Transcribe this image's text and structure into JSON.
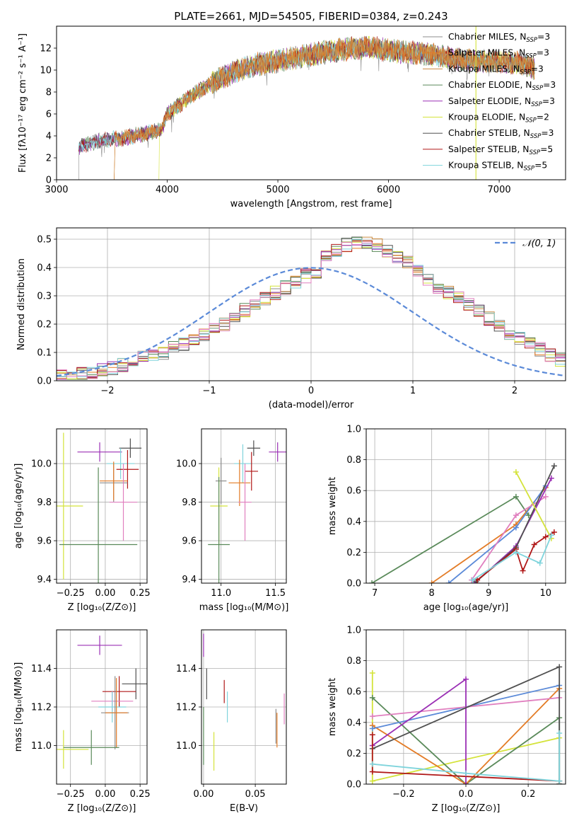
{
  "title": "PLATE=2661, MJD=54505, FIBERID=0384, z=0.243",
  "colors": {
    "chabrier_miles": "#8c8c8c",
    "salpeter_miles": "#e37c27",
    "kroupa_miles": "#c98a40",
    "chabrier_elodie": "#5a8a5a",
    "salpeter_elodie": "#9b30b5",
    "kroupa_elodie": "#d4e33a",
    "chabrier_stelib": "#505050",
    "salpeter_stelib": "#b01818",
    "kroupa_stelib": "#7fd4dc",
    "normal": "#5b8ad8",
    "pink": "#e07fbf",
    "blue": "#5b8ad8"
  },
  "chart_data": [
    {
      "type": "line",
      "xlabel": "wavelength [Angstrom, rest frame]",
      "ylabel": "Flux [fλ10⁻¹⁷ erg cm⁻² s⁻¹ A⁻¹]",
      "xlim": [
        3000,
        7600
      ],
      "ylim": [
        0,
        14
      ],
      "xticks": [
        "3000",
        "4000",
        "5000",
        "6000",
        "7000"
      ],
      "yticks": [
        "0",
        "2",
        "4",
        "6",
        "8",
        "10",
        "12"
      ],
      "legend": [
        {
          "label": "Chabrier MILES, N",
          "sub": "SSP",
          "val": "=3",
          "color": "#8c8c8c"
        },
        {
          "label": "Salpeter MILES, N",
          "sub": "SSP",
          "val": "=3",
          "color": "#e37c27"
        },
        {
          "label": "Kroupa MILES, N",
          "sub": "SSP",
          "val": "=3",
          "color": "#c98a40"
        },
        {
          "label": "Chabrier ELODIE, N",
          "sub": "SSP",
          "val": "=3",
          "color": "#5a8a5a"
        },
        {
          "label": "Salpeter ELODIE, N",
          "sub": "SSP",
          "val": "=3",
          "color": "#9b30b5"
        },
        {
          "label": "Kroupa ELODIE, N",
          "sub": "SSP",
          "val": "=2",
          "color": "#d4e33a"
        },
        {
          "label": "Chabrier STELIB, N",
          "sub": "SSP",
          "val": "=3",
          "color": "#505050"
        },
        {
          "label": "Salpeter STELIB, N",
          "sub": "SSP",
          "val": "=5",
          "color": "#b01818"
        },
        {
          "label": "Kroupa STELIB, N",
          "sub": "SSP",
          "val": "=5",
          "color": "#7fd4dc"
        }
      ],
      "continuum": [
        [
          3200,
          3.0
        ],
        [
          3400,
          3.6
        ],
        [
          3600,
          3.8
        ],
        [
          3800,
          4.2
        ],
        [
          3950,
          4.6
        ],
        [
          4000,
          6.0
        ],
        [
          4200,
          7.5
        ],
        [
          4400,
          8.8
        ],
        [
          4600,
          9.8
        ],
        [
          4800,
          10.5
        ],
        [
          5000,
          10.8
        ],
        [
          5200,
          11.2
        ],
        [
          5400,
          11.6
        ],
        [
          5600,
          11.9
        ],
        [
          5800,
          12.1
        ],
        [
          6000,
          11.8
        ],
        [
          6200,
          11.6
        ],
        [
          6400,
          11.4
        ],
        [
          6600,
          11.0
        ],
        [
          6800,
          10.8
        ],
        [
          7000,
          10.8
        ],
        [
          7200,
          10.6
        ],
        [
          7320,
          10.2
        ]
      ]
    },
    {
      "type": "bar",
      "xlabel": "(data-model)/error",
      "ylabel": "Normed distribution",
      "xlim": [
        -2.5,
        2.5
      ],
      "ylim": [
        0,
        0.54
      ],
      "xticks": [
        "−2",
        "−1",
        "0",
        "1",
        "2"
      ],
      "yticks": [
        "0.0",
        "0.1",
        "0.2",
        "0.3",
        "0.4",
        "0.5"
      ],
      "legend": [
        "𝒩(0, 1)"
      ],
      "bin_width": 0.1,
      "bin_start": -2.5,
      "values": [
        0.02,
        0.02,
        0.025,
        0.03,
        0.04,
        0.045,
        0.055,
        0.065,
        0.08,
        0.09,
        0.1,
        0.115,
        0.13,
        0.145,
        0.16,
        0.18,
        0.2,
        0.225,
        0.25,
        0.27,
        0.29,
        0.31,
        0.33,
        0.35,
        0.37,
        0.385,
        0.44,
        0.46,
        0.48,
        0.49,
        0.49,
        0.48,
        0.46,
        0.44,
        0.42,
        0.39,
        0.36,
        0.33,
        0.31,
        0.29,
        0.27,
        0.25,
        0.22,
        0.2,
        0.17,
        0.15,
        0.13,
        0.11,
        0.09,
        0.075,
        0.06,
        0.05,
        0.045,
        0.04,
        0.035,
        0.03,
        0.03,
        0.025,
        0.025,
        0.02
      ]
    },
    {
      "type": "scatter",
      "xlabel": "Z [log₁₀(Z/Z⊙)]",
      "ylabel": "age  [log₁₀(age/yr)]",
      "xlim": [
        -0.35,
        0.3
      ],
      "ylim": [
        9.38,
        10.18
      ],
      "xticks": [
        "−0.25",
        "0.00",
        "0.25"
      ],
      "yticks": [
        "9.4",
        "9.6",
        "9.8",
        "10.0"
      ],
      "points": [
        {
          "x": -0.04,
          "y": 10.06,
          "ex": 0.16,
          "ey": 0.05,
          "color": "#9b30b5"
        },
        {
          "x": 0.18,
          "y": 10.08,
          "ex": 0.08,
          "ey": 0.05,
          "color": "#505050"
        },
        {
          "x": 0.11,
          "y": 10.0,
          "ex": 0.1,
          "ey": 0.08,
          "color": "#7fd4dc"
        },
        {
          "x": 0.16,
          "y": 9.97,
          "ex": 0.08,
          "ey": 0.1,
          "color": "#b01818"
        },
        {
          "x": 0.06,
          "y": 9.9,
          "ex": 0.1,
          "ey": 0.1,
          "color": "#8c8c8c"
        },
        {
          "x": 0.06,
          "y": 9.91,
          "ex": 0.1,
          "ey": 0.1,
          "color": "#e37c27"
        },
        {
          "x": 0.13,
          "y": 9.8,
          "ex": 0.1,
          "ey": 0.2,
          "color": "#e07fbf"
        },
        {
          "x": -0.3,
          "y": 9.78,
          "ex": 0.14,
          "ey": 0.38,
          "color": "#d4e33a"
        },
        {
          "x": -0.05,
          "y": 9.58,
          "ex": 0.28,
          "ey": 0.4,
          "color": "#5a8a5a"
        }
      ]
    },
    {
      "type": "scatter",
      "xlabel": "mass [log₁₀(M/M⊙)]",
      "ylabel": "",
      "xlim": [
        10.82,
        11.6
      ],
      "ylim": [
        9.38,
        10.18
      ],
      "xticks": [
        "11.0",
        "11.5"
      ],
      "yticks": [
        "9.4",
        "9.6",
        "9.8",
        "10.0"
      ],
      "points": [
        {
          "x": 11.3,
          "y": 10.08,
          "ex": 0.06,
          "ey": 0.04,
          "color": "#505050"
        },
        {
          "x": 11.52,
          "y": 10.06,
          "ex": 0.08,
          "ey": 0.05,
          "color": "#9b30b5"
        },
        {
          "x": 11.2,
          "y": 10.0,
          "ex": 0.08,
          "ey": 0.1,
          "color": "#7fd4dc"
        },
        {
          "x": 11.28,
          "y": 9.96,
          "ex": 0.06,
          "ey": 0.1,
          "color": "#b01818"
        },
        {
          "x": 11.17,
          "y": 9.9,
          "ex": 0.1,
          "ey": 0.12,
          "color": "#e37c27"
        },
        {
          "x": 11.0,
          "y": 9.91,
          "ex": 0.05,
          "ey": 0.12,
          "color": "#8c8c8c"
        },
        {
          "x": 11.22,
          "y": 9.8,
          "ex": 0.06,
          "ey": 0.2,
          "color": "#e07fbf"
        },
        {
          "x": 10.98,
          "y": 9.78,
          "ex": 0.08,
          "ey": 0.2,
          "color": "#d4e33a"
        },
        {
          "x": 10.98,
          "y": 9.58,
          "ex": 0.1,
          "ey": 0.35,
          "color": "#5a8a5a"
        }
      ]
    },
    {
      "type": "line",
      "xlabel": "age  [log₁₀(age/yr)]",
      "ylabel": "mass weight",
      "xlim": [
        6.85,
        10.35
      ],
      "ylim": [
        0,
        1.0
      ],
      "xticks": [
        "7",
        "8",
        "9",
        "10"
      ],
      "yticks": [
        "0.0",
        "0.2",
        "0.4",
        "0.6",
        "0.8",
        "1.0"
      ],
      "series": [
        {
          "color": "#5a8a5a",
          "x": [
            6.95,
            9.48,
            9.7
          ],
          "y": [
            0.0,
            0.56,
            0.44
          ]
        },
        {
          "color": "#e37c27",
          "x": [
            8.0,
            9.48,
            10.0
          ],
          "y": [
            0.0,
            0.38,
            0.62
          ]
        },
        {
          "color": "#5b8ad8",
          "x": [
            8.3,
            9.48,
            10.0
          ],
          "y": [
            0.0,
            0.36,
            0.63
          ]
        },
        {
          "color": "#e07fbf",
          "x": [
            8.7,
            9.48,
            10.0
          ],
          "y": [
            0.02,
            0.44,
            0.56
          ]
        },
        {
          "color": "#9b30b5",
          "x": [
            8.75,
            9.48,
            10.1
          ],
          "y": [
            0.0,
            0.24,
            0.68
          ]
        },
        {
          "color": "#505050",
          "x": [
            8.78,
            9.48,
            10.15
          ],
          "y": [
            0.01,
            0.23,
            0.76
          ]
        },
        {
          "color": "#b01818",
          "x": [
            8.8,
            9.48,
            9.6,
            9.8,
            10.0,
            10.15
          ],
          "y": [
            0.02,
            0.22,
            0.08,
            0.25,
            0.3,
            0.33
          ]
        },
        {
          "color": "#d4e33a",
          "x": [
            9.48,
            10.1
          ],
          "y": [
            0.72,
            0.29
          ]
        },
        {
          "color": "#7fd4dc",
          "x": [
            8.72,
            9.48,
            9.9,
            10.1
          ],
          "y": [
            0.02,
            0.2,
            0.13,
            0.31
          ]
        }
      ]
    },
    {
      "type": "scatter",
      "xlabel": "Z [log₁₀(Z/Z⊙)]",
      "ylabel": "mass [log₁₀(M/M⊙)]",
      "xlim": [
        -0.35,
        0.3
      ],
      "ylim": [
        10.8,
        11.6
      ],
      "xticks": [
        "−0.25",
        "0.00",
        "0.25"
      ],
      "yticks": [
        "11.0",
        "11.2",
        "11.4"
      ],
      "points": [
        {
          "x": -0.04,
          "y": 11.52,
          "ex": 0.16,
          "ey": 0.05,
          "color": "#9b30b5"
        },
        {
          "x": 0.22,
          "y": 11.32,
          "ex": 0.1,
          "ey": 0.08,
          "color": "#505050"
        },
        {
          "x": 0.1,
          "y": 11.28,
          "ex": 0.12,
          "ey": 0.08,
          "color": "#b01818"
        },
        {
          "x": 0.05,
          "y": 11.23,
          "ex": 0.15,
          "ey": 0.05,
          "color": "#e07fbf"
        },
        {
          "x": 0.05,
          "y": 11.2,
          "ex": 0.1,
          "ey": 0.08,
          "color": "#7fd4dc"
        },
        {
          "x": 0.07,
          "y": 11.17,
          "ex": 0.1,
          "ey": 0.19,
          "color": "#8c8c8c"
        },
        {
          "x": 0.08,
          "y": 11.17,
          "ex": 0.08,
          "ey": 0.18,
          "color": "#e37c27"
        },
        {
          "x": -0.3,
          "y": 10.98,
          "ex": 0.18,
          "ey": 0.1,
          "color": "#d4e33a"
        },
        {
          "x": -0.1,
          "y": 10.99,
          "ex": 0.2,
          "ey": 0.09,
          "color": "#5a8a5a"
        }
      ]
    },
    {
      "type": "scatter",
      "xlabel": "E(B-V)",
      "ylabel": "",
      "xlim": [
        -0.002,
        0.08
      ],
      "ylim": [
        10.8,
        11.6
      ],
      "xticks": [
        "0.00",
        "0.05"
      ],
      "yticks": [
        "11.0",
        "11.2",
        "11.4"
      ],
      "points": [
        {
          "x": 0.0,
          "y": 11.52,
          "ex": 0,
          "ey": 0.06,
          "color": "#9b30b5"
        },
        {
          "x": 0.003,
          "y": 11.32,
          "ex": 0,
          "ey": 0.08,
          "color": "#505050"
        },
        {
          "x": 0.02,
          "y": 11.28,
          "ex": 0,
          "ey": 0.06,
          "color": "#b01818"
        },
        {
          "x": 0.078,
          "y": 11.19,
          "ex": 0,
          "ey": 0.08,
          "color": "#e07fbf"
        },
        {
          "x": 0.023,
          "y": 11.2,
          "ex": 0,
          "ey": 0.08,
          "color": "#7fd4dc"
        },
        {
          "x": 0.07,
          "y": 11.1,
          "ex": 0,
          "ey": 0.09,
          "color": "#8c8c8c"
        },
        {
          "x": 0.071,
          "y": 11.08,
          "ex": 0,
          "ey": 0.09,
          "color": "#e37c27"
        },
        {
          "x": 0.01,
          "y": 10.97,
          "ex": 0,
          "ey": 0.1,
          "color": "#d4e33a"
        },
        {
          "x": 0.0,
          "y": 11.05,
          "ex": 0,
          "ey": 0.15,
          "color": "#5a8a5a"
        }
      ]
    },
    {
      "type": "line",
      "xlabel": "Z [log₁₀(Z/Z⊙)]",
      "ylabel": "mass weight",
      "xlim": [
        -0.32,
        0.32
      ],
      "ylim": [
        0,
        1.0
      ],
      "xticks": [
        "−0.2",
        "0.0",
        "0.2"
      ],
      "yticks": [
        "0.0",
        "0.2",
        "0.4",
        "0.6",
        "0.8",
        "1.0"
      ],
      "series": [
        {
          "color": "#d4e33a",
          "x": [
            -0.3,
            -0.3,
            0.3
          ],
          "y": [
            0.72,
            0.02,
            0.3
          ]
        },
        {
          "color": "#5a8a5a",
          "x": [
            -0.3,
            0.0,
            0.3,
            0.3
          ],
          "y": [
            0.56,
            0.0,
            0.43,
            0.0
          ]
        },
        {
          "color": "#e37c27",
          "x": [
            -0.3,
            0.0,
            0.3
          ],
          "y": [
            0.38,
            0.0,
            0.62
          ]
        },
        {
          "color": "#5b8ad8",
          "x": [
            -0.3,
            0.0,
            0.3
          ],
          "y": [
            0.36,
            0.5,
            0.64
          ]
        },
        {
          "color": "#e07fbf",
          "x": [
            -0.3,
            0.3
          ],
          "y": [
            0.44,
            0.56
          ]
        },
        {
          "color": "#9b30b5",
          "x": [
            -0.3,
            0.0,
            0.0
          ],
          "y": [
            0.25,
            0.68,
            0.0
          ]
        },
        {
          "color": "#505050",
          "x": [
            -0.3,
            0.3,
            0.3
          ],
          "y": [
            0.23,
            0.76,
            0.0
          ]
        },
        {
          "color": "#b01818",
          "x": [
            -0.3,
            -0.3,
            0.3
          ],
          "y": [
            0.32,
            0.08,
            0.02
          ]
        },
        {
          "color": "#7fd4dc",
          "x": [
            -0.3,
            0.0,
            0.3,
            0.3
          ],
          "y": [
            0.13,
            0.07,
            0.02,
            0.33
          ]
        }
      ]
    }
  ]
}
